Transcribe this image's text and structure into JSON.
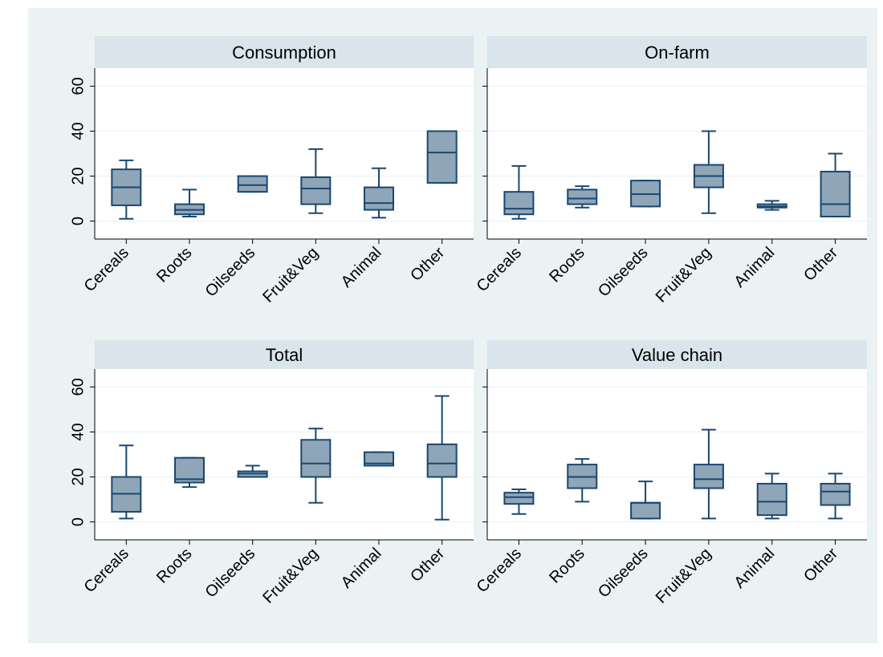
{
  "colors": {
    "outer_background": "#eaf2f3",
    "plot_background": "#ffffff",
    "strip_background": "#d9e5ea",
    "grid": "#eaf2f3",
    "box_fill": "#8fa6b8",
    "box_line": "#1a476f",
    "axis": "#000000",
    "text": "#000000"
  },
  "chart_data": [
    {
      "type": "box",
      "title": "Consumption",
      "categories": [
        "Cereals",
        "Roots",
        "Oilseeds",
        "Fruit&Veg",
        "Animal",
        "Other"
      ],
      "y_ticks": [
        "0",
        "20",
        "40",
        "60"
      ],
      "ylim": [
        -8,
        68
      ],
      "grid": true,
      "boxes": [
        {
          "category": "Cereals",
          "min": 1,
          "q1": 7,
          "median": 15,
          "q3": 23,
          "max": 27
        },
        {
          "category": "Roots",
          "min": 2,
          "q1": 3,
          "median": 5,
          "q3": 7.5,
          "max": 14
        },
        {
          "category": "Oilseeds",
          "min": 13,
          "q1": 13,
          "median": 16,
          "q3": 20,
          "max": 20
        },
        {
          "category": "Fruit&Veg",
          "min": 3.5,
          "q1": 7.5,
          "median": 14.5,
          "q3": 19.5,
          "max": 32
        },
        {
          "category": "Animal",
          "min": 1.5,
          "q1": 5,
          "median": 8,
          "q3": 15,
          "max": 23.5
        },
        {
          "category": "Other",
          "min": 17,
          "q1": 17,
          "median": 30.5,
          "q3": 40,
          "max": 40
        }
      ]
    },
    {
      "type": "box",
      "title": "On-farm",
      "categories": [
        "Cereals",
        "Roots",
        "Oilseeds",
        "Fruit&Veg",
        "Animal",
        "Other"
      ],
      "y_ticks": [
        "0",
        "20",
        "40",
        "60"
      ],
      "ylim": [
        -8,
        68
      ],
      "grid": true,
      "boxes": [
        {
          "category": "Cereals",
          "min": 1,
          "q1": 3,
          "median": 5.5,
          "q3": 13,
          "max": 24.5
        },
        {
          "category": "Roots",
          "min": 6,
          "q1": 7.5,
          "median": 10,
          "q3": 14,
          "max": 15.5
        },
        {
          "category": "Oilseeds",
          "min": 6.5,
          "q1": 6.5,
          "median": 12,
          "q3": 18,
          "max": 18
        },
        {
          "category": "Fruit&Veg",
          "min": 3.5,
          "q1": 15,
          "median": 20,
          "q3": 25,
          "max": 40
        },
        {
          "category": "Animal",
          "min": 5,
          "q1": 6,
          "median": 6.5,
          "q3": 7.5,
          "max": 9
        },
        {
          "category": "Other",
          "min": 2,
          "q1": 2,
          "median": 7.5,
          "q3": 22,
          "max": 30
        }
      ]
    },
    {
      "type": "box",
      "title": "Total",
      "categories": [
        "Cereals",
        "Roots",
        "Oilseeds",
        "Fruit&Veg",
        "Animal",
        "Other"
      ],
      "y_ticks": [
        "0",
        "20",
        "40",
        "60"
      ],
      "ylim": [
        -8,
        68
      ],
      "grid": true,
      "boxes": [
        {
          "category": "Cereals",
          "min": 1.5,
          "q1": 4.5,
          "median": 12.5,
          "q3": 20,
          "max": 34
        },
        {
          "category": "Roots",
          "min": 15.5,
          "q1": 17.5,
          "median": 19,
          "q3": 28.5,
          "max": 28.5
        },
        {
          "category": "Oilseeds",
          "min": 20,
          "q1": 20,
          "median": 21.5,
          "q3": 22.5,
          "max": 25
        },
        {
          "category": "Fruit&Veg",
          "min": 8.5,
          "q1": 20,
          "median": 26,
          "q3": 36.5,
          "max": 41.5
        },
        {
          "category": "Animal",
          "min": 25,
          "q1": 25,
          "median": 26,
          "q3": 31,
          "max": 31
        },
        {
          "category": "Other",
          "min": 1,
          "q1": 20,
          "median": 26,
          "q3": 34.5,
          "max": 56
        }
      ]
    },
    {
      "type": "box",
      "title": "Value chain",
      "categories": [
        "Cereals",
        "Roots",
        "Oilseeds",
        "Fruit&Veg",
        "Animal",
        "Other"
      ],
      "y_ticks": [
        "0",
        "20",
        "40",
        "60"
      ],
      "ylim": [
        -8,
        68
      ],
      "grid": true,
      "boxes": [
        {
          "category": "Cereals",
          "min": 3.5,
          "q1": 8,
          "median": 11,
          "q3": 13,
          "max": 14.5
        },
        {
          "category": "Roots",
          "min": 9,
          "q1": 15,
          "median": 20,
          "q3": 25.5,
          "max": 28
        },
        {
          "category": "Oilseeds",
          "min": 1.5,
          "q1": 1.5,
          "median": 8.5,
          "q3": 8.5,
          "max": 18
        },
        {
          "category": "Fruit&Veg",
          "min": 1.5,
          "q1": 15,
          "median": 19,
          "q3": 25.5,
          "max": 41
        },
        {
          "category": "Animal",
          "min": 1.5,
          "q1": 3,
          "median": 9,
          "q3": 17,
          "max": 21.5
        },
        {
          "category": "Other",
          "min": 1.5,
          "q1": 7.5,
          "median": 13.5,
          "q3": 17,
          "max": 21.5
        }
      ]
    }
  ]
}
